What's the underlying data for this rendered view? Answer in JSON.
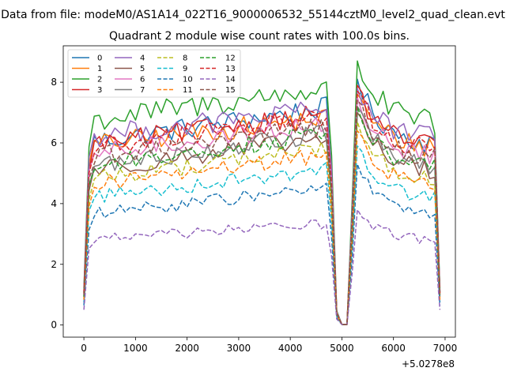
{
  "figure": {
    "suptitle": "Data from file: modeM0/AS1A14_022T16_9000006532_55144cztM0_level2_quad_clean.evt",
    "title": "Quadrant 2 module wise count rates with 100.0s bins."
  },
  "chart_data": {
    "type": "line",
    "title": "Quadrant 2 module wise count rates with 100.0s bins.",
    "xlabel": "",
    "ylabel": "",
    "x_offset_label": "+5.0278e8",
    "x_offset": 502780000,
    "xlim": [
      -400,
      7200
    ],
    "ylim": [
      -0.4,
      9.2
    ],
    "xticks": [
      0,
      1000,
      2000,
      3000,
      4000,
      5000,
      6000,
      7000
    ],
    "yticks": [
      0,
      2,
      4,
      6,
      8
    ],
    "grid": false,
    "legend": {
      "placement": "top-left",
      "columns": 4
    },
    "series": [
      {
        "name": "0",
        "color": "#1f77b4",
        "dash": "solid",
        "profile": "m0",
        "base": 6.0,
        "peak": 8.1
      },
      {
        "name": "1",
        "color": "#ff7f0e",
        "dash": "solid",
        "profile": "m1",
        "base": 5.9,
        "peak": 7.6
      },
      {
        "name": "2",
        "color": "#2ca02c",
        "dash": "solid",
        "profile": "m2",
        "base": 6.7,
        "peak": 8.7
      },
      {
        "name": "3",
        "color": "#d62728",
        "dash": "solid",
        "profile": "m3",
        "base": 5.9,
        "peak": 7.9
      },
      {
        "name": "4",
        "color": "#9467bd",
        "dash": "solid",
        "profile": "m4",
        "base": 6.2,
        "peak": 7.8
      },
      {
        "name": "5",
        "color": "#8c564b",
        "dash": "solid",
        "profile": "m5",
        "base": 5.1,
        "peak": 7.0
      },
      {
        "name": "6",
        "color": "#e377c2",
        "dash": "solid",
        "profile": "m6",
        "base": 5.6,
        "peak": 7.5
      },
      {
        "name": "7",
        "color": "#7f7f7f",
        "dash": "solid",
        "profile": "m7",
        "base": 5.2,
        "peak": 7.2
      },
      {
        "name": "8",
        "color": "#bcbd22",
        "dash": "dashed",
        "profile": "m8",
        "base": 4.8,
        "peak": 6.7
      },
      {
        "name": "9",
        "color": "#17becf",
        "dash": "dashed",
        "profile": "m9",
        "base": 4.2,
        "peak": 5.9
      },
      {
        "name": "10",
        "color": "#1f77b4",
        "dash": "dashed",
        "profile": "m10",
        "base": 3.6,
        "peak": 5.3
      },
      {
        "name": "11",
        "color": "#ff7f0e",
        "dash": "dashed",
        "profile": "m11",
        "base": 4.6,
        "peak": 6.4
      },
      {
        "name": "12",
        "color": "#2ca02c",
        "dash": "dashed",
        "profile": "m12",
        "base": 5.2,
        "peak": 7.2
      },
      {
        "name": "13",
        "color": "#d62728",
        "dash": "dashed",
        "profile": "m13",
        "base": 5.8,
        "peak": 7.7
      },
      {
        "name": "14",
        "color": "#9467bd",
        "dash": "dashed",
        "profile": "m14",
        "base": 2.8,
        "peak": 3.8
      },
      {
        "name": "15",
        "color": "#8c564b",
        "dash": "dashed",
        "profile": "m15",
        "base": 5.5,
        "peak": 7.4
      }
    ]
  }
}
